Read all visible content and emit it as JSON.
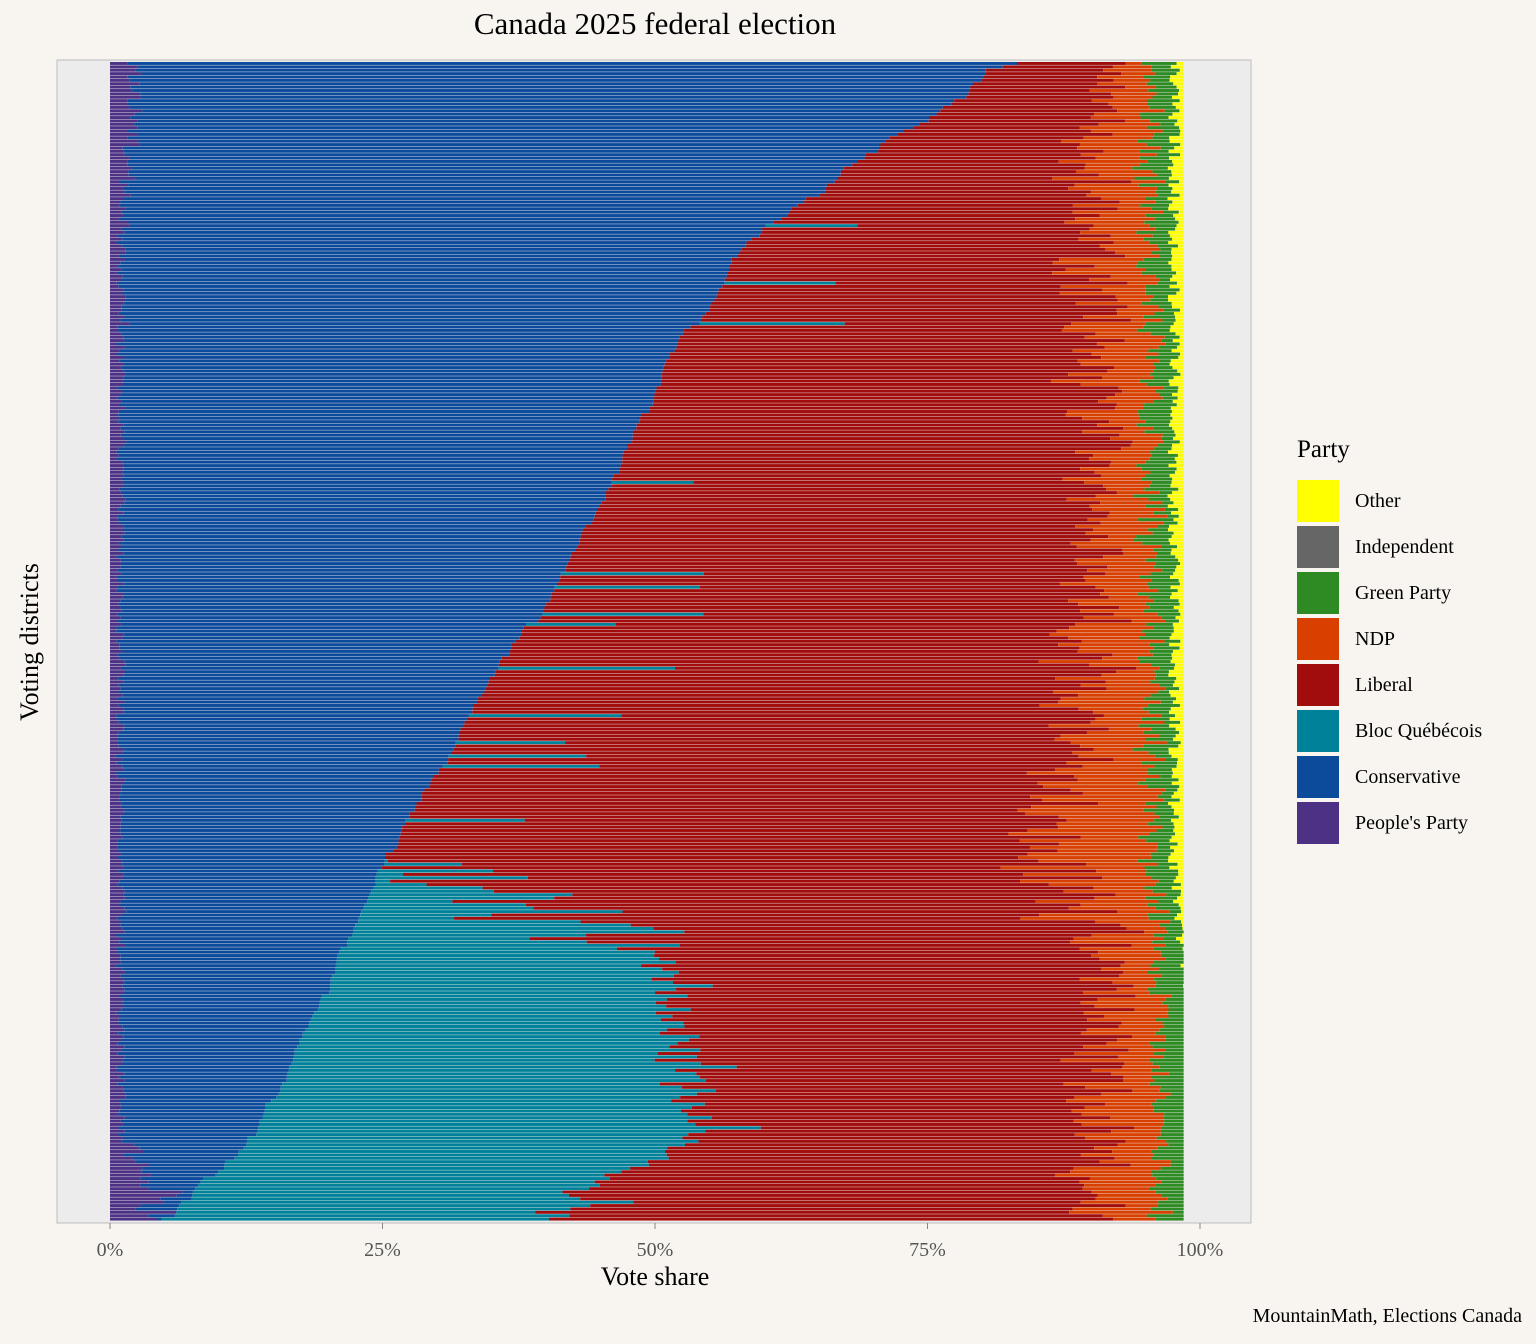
{
  "chart_data": {
    "type": "bar",
    "orientation": "horizontal-stacked-100%",
    "title": "Canada 2025 federal election",
    "xlabel": "Vote share",
    "ylabel": "Voting districts",
    "caption": "MountainMath, Elections Canada",
    "legend_title": "Party",
    "legend_position": "right",
    "x_ticks": [
      "0%",
      "25%",
      "50%",
      "75%",
      "100%"
    ],
    "xlim": [
      0,
      1
    ],
    "stack_order": [
      "People's Party",
      "Conservative",
      "Bloc Québécois",
      "Liberal",
      "NDP",
      "Green Party",
      "Independent",
      "Other"
    ],
    "legend_order": [
      "Other",
      "Independent",
      "Green Party",
      "NDP",
      "Liberal",
      "Bloc Québécois",
      "Conservative",
      "People's Party"
    ],
    "colors": {
      "Other": "#ffff00",
      "Independent": "#666666",
      "Green Party": "#2e8b23",
      "NDP": "#d94000",
      "Liberal": "#a10c0c",
      "Bloc Québécois": "#00819a",
      "Conservative": "#0c4a9c",
      "People's Party": "#4c3185"
    },
    "series_note": "Each row is one voting district (≈343 districts), sorted by cumulative People's Party + Conservative share, descending top to bottom.",
    "districts_sample": [
      {
        "ppc": 0.02,
        "con": 0.82,
        "bq": 0.0,
        "lib": 0.1,
        "ndp": 0.03,
        "grn": 0.02,
        "ind": 0.0,
        "oth": 0.01
      },
      {
        "ppc": 0.02,
        "con": 0.7,
        "bq": 0.0,
        "lib": 0.2,
        "ndp": 0.05,
        "grn": 0.02,
        "ind": 0.0,
        "oth": 0.01
      },
      {
        "ppc": 0.01,
        "con": 0.6,
        "bq": 0.0,
        "lib": 0.31,
        "ndp": 0.05,
        "grn": 0.02,
        "ind": 0.0,
        "oth": 0.01
      },
      {
        "ppc": 0.01,
        "con": 0.53,
        "bq": 0.0,
        "lib": 0.38,
        "ndp": 0.05,
        "grn": 0.02,
        "ind": 0.0,
        "oth": 0.01
      },
      {
        "ppc": 0.01,
        "con": 0.49,
        "bq": 0.0,
        "lib": 0.43,
        "ndp": 0.04,
        "grn": 0.02,
        "ind": 0.0,
        "oth": 0.01
      },
      {
        "ppc": 0.01,
        "con": 0.45,
        "bq": 0.0,
        "lib": 0.46,
        "ndp": 0.05,
        "grn": 0.02,
        "ind": 0.0,
        "oth": 0.01
      },
      {
        "ppc": 0.01,
        "con": 0.41,
        "bq": 0.0,
        "lib": 0.5,
        "ndp": 0.05,
        "grn": 0.02,
        "ind": 0.0,
        "oth": 0.01
      },
      {
        "ppc": 0.01,
        "con": 0.35,
        "bq": 0.0,
        "lib": 0.55,
        "ndp": 0.06,
        "grn": 0.02,
        "ind": 0.0,
        "oth": 0.01
      },
      {
        "ppc": 0.01,
        "con": 0.3,
        "bq": 0.0,
        "lib": 0.59,
        "ndp": 0.07,
        "grn": 0.02,
        "ind": 0.0,
        "oth": 0.01
      },
      {
        "ppc": 0.01,
        "con": 0.25,
        "bq": 0.0,
        "lib": 0.62,
        "ndp": 0.09,
        "grn": 0.02,
        "ind": 0.0,
        "oth": 0.01
      },
      {
        "ppc": 0.01,
        "con": 0.21,
        "bq": 0.3,
        "lib": 0.42,
        "ndp": 0.04,
        "grn": 0.02,
        "ind": 0.0,
        "oth": 0.0
      },
      {
        "ppc": 0.01,
        "con": 0.17,
        "bq": 0.35,
        "lib": 0.4,
        "ndp": 0.05,
        "grn": 0.02,
        "ind": 0.0,
        "oth": 0.0
      },
      {
        "ppc": 0.01,
        "con": 0.13,
        "bq": 0.42,
        "lib": 0.37,
        "ndp": 0.05,
        "grn": 0.02,
        "ind": 0.0,
        "oth": 0.0
      },
      {
        "ppc": 0.05,
        "con": 0.0,
        "bq": 0.35,
        "lib": 0.52,
        "ndp": 0.06,
        "grn": 0.02,
        "ind": 0.0,
        "oth": 0.0
      }
    ]
  }
}
